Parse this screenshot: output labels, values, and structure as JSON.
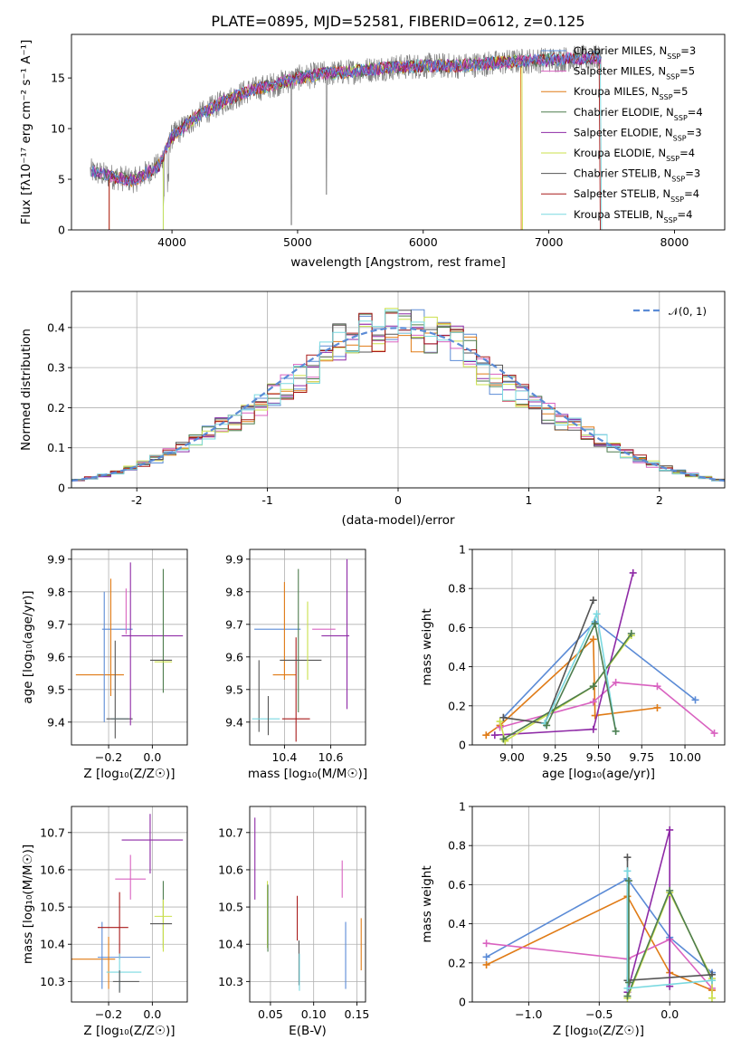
{
  "title": "PLATE=0895, MJD=52581, FIBERID=0612, z=0.125",
  "colors": [
    "#5b8bd6",
    "#d962c0",
    "#e07b16",
    "#4e7d4e",
    "#8e2aa6",
    "#cbe04b",
    "#555555",
    "#a81a1a",
    "#7ad9e0"
  ],
  "chart_data": [
    {
      "id": "spectrum",
      "type": "line",
      "xlabel": "wavelength [Angstrom, rest frame]",
      "ylabel": "Flux [fλ10⁻¹⁷ erg cm⁻² s⁻¹ A⁻¹]",
      "xlim": [
        3200,
        8400
      ],
      "ylim": [
        0,
        19.3
      ],
      "xticks": [
        4000,
        5000,
        6000,
        7000,
        8000
      ],
      "yticks": [
        0,
        5,
        10,
        15
      ],
      "continuum": {
        "x": [
          3350,
          3500,
          3700,
          3900,
          4000,
          4200,
          4400,
          4600,
          4800,
          5000,
          5200,
          5400,
          5700,
          6000,
          6300,
          6600,
          7000,
          7400
        ],
        "y": [
          5.8,
          5.3,
          4.9,
          6.4,
          9.2,
          11.2,
          12.6,
          13.7,
          14.3,
          15.0,
          15.4,
          15.6,
          16.0,
          16.2,
          16.2,
          16.5,
          16.8,
          17.0
        ]
      },
      "observed_extent": [
        3350,
        7420
      ],
      "legend": [
        {
          "name": "Chabrier MILES, N",
          "sub": "SSP",
          "tail": "=3"
        },
        {
          "name": "Salpeter MILES, N",
          "sub": "SSP",
          "tail": "=5"
        },
        {
          "name": "Kroupa MILES, N",
          "sub": "SSP",
          "tail": "=5"
        },
        {
          "name": "Chabrier ELODIE, N",
          "sub": "SSP",
          "tail": "=4"
        },
        {
          "name": "Salpeter ELODIE, N",
          "sub": "SSP",
          "tail": "=3"
        },
        {
          "name": "Kroupa ELODIE, N",
          "sub": "SSP",
          "tail": "=4"
        },
        {
          "name": "Chabrier STELIB, N",
          "sub": "SSP",
          "tail": "=3"
        },
        {
          "name": "Salpeter STELIB, N",
          "sub": "SSP",
          "tail": "=4"
        },
        {
          "name": "Kroupa STELIB, N",
          "sub": "SSP",
          "tail": "=4"
        }
      ]
    },
    {
      "id": "residuals",
      "type": "histogram",
      "xlabel": "(data-model)/error",
      "ylabel": "Normed distribution",
      "xlim": [
        -2.5,
        2.5
      ],
      "ylim": [
        0,
        0.49
      ],
      "xticks": [
        -2,
        -1,
        0,
        1,
        2
      ],
      "yticks": [
        0.0,
        0.1,
        0.2,
        0.3,
        0.4
      ],
      "bin_width": 0.1,
      "gaussian_label": "𝒩(0, 1)",
      "grid": true
    },
    {
      "id": "age_vs_Z",
      "type": "errorbar",
      "xlabel": "Z [log₁₀(Z/Z☉)]",
      "ylabel": "age  [log₁₀(age/yr)]",
      "xlim": [
        -0.37,
        0.16
      ],
      "ylim": [
        9.33,
        9.93
      ],
      "xticks": [
        -0.2,
        0.0
      ],
      "xticklabels": [
        "−0.2",
        "0.0"
      ],
      "yticks": [
        9.4,
        9.5,
        9.6,
        9.7,
        9.8,
        9.9
      ],
      "points": [
        {
          "x": -0.16,
          "xerr": 0.07,
          "y": 9.685,
          "yerr": 0.0,
          "c": 0
        },
        {
          "x": -0.24,
          "xerr": 0.11,
          "y": 9.545,
          "yerr": 0.0,
          "c": 2
        },
        {
          "x": -0.22,
          "xerr": 0.0,
          "y": 9.6,
          "yerr": 0.2,
          "c": 0
        },
        {
          "x": -0.19,
          "xerr": 0.0,
          "y": 9.66,
          "yerr": 0.18,
          "c": 2
        },
        {
          "x": -0.17,
          "xerr": 0.0,
          "y": 9.5,
          "yerr": 0.15,
          "c": 6
        },
        {
          "x": -0.15,
          "xerr": 0.04,
          "y": 9.41,
          "yerr": 0.0,
          "c": 8
        },
        {
          "x": -0.15,
          "xerr": 0.06,
          "y": 9.41,
          "yerr": 0.0,
          "c": 6
        },
        {
          "x": -0.12,
          "xerr": 0.0,
          "y": 9.74,
          "yerr": 0.07,
          "c": 1
        },
        {
          "x": -0.1,
          "xerr": 0.0,
          "y": 9.64,
          "yerr": 0.25,
          "c": 4
        },
        {
          "x": 0.0,
          "xerr": 0.14,
          "y": 9.665,
          "yerr": 0.0,
          "c": 4
        },
        {
          "x": 0.05,
          "xerr": 0.0,
          "y": 9.68,
          "yerr": 0.19,
          "c": 3
        },
        {
          "x": 0.04,
          "xerr": 0.05,
          "y": 9.59,
          "yerr": 0.0,
          "c": 6
        },
        {
          "x": 0.05,
          "xerr": 0.04,
          "y": 9.585,
          "yerr": 0.0,
          "c": 5
        }
      ]
    },
    {
      "id": "age_vs_mass",
      "type": "errorbar",
      "xlabel": "mass [log₁₀(M/M☉)]",
      "ylabel": "",
      "xlim": [
        10.25,
        10.75
      ],
      "ylim": [
        9.33,
        9.93
      ],
      "xticks": [
        10.4,
        10.6
      ],
      "yticks": [
        9.4,
        9.5,
        9.6,
        9.7,
        9.8,
        9.9
      ],
      "points": [
        {
          "x": 10.37,
          "xerr": 0.1,
          "y": 9.685,
          "yerr": 0.0,
          "c": 0
        },
        {
          "x": 10.4,
          "xerr": 0.0,
          "y": 9.68,
          "yerr": 0.15,
          "c": 2
        },
        {
          "x": 10.4,
          "xerr": 0.05,
          "y": 9.545,
          "yerr": 0.0,
          "c": 2
        },
        {
          "x": 10.29,
          "xerr": 0.0,
          "y": 9.48,
          "yerr": 0.11,
          "c": 6
        },
        {
          "x": 10.32,
          "xerr": 0.06,
          "y": 9.41,
          "yerr": 0.0,
          "c": 8
        },
        {
          "x": 10.33,
          "xerr": 0.0,
          "y": 9.42,
          "yerr": 0.06,
          "c": 6
        },
        {
          "x": 10.45,
          "xerr": 0.0,
          "y": 9.5,
          "yerr": 0.16,
          "c": 7
        },
        {
          "x": 10.45,
          "xerr": 0.06,
          "y": 9.41,
          "yerr": 0.0,
          "c": 7
        },
        {
          "x": 10.46,
          "xerr": 0.0,
          "y": 9.65,
          "yerr": 0.22,
          "c": 3
        },
        {
          "x": 10.47,
          "xerr": 0.09,
          "y": 9.59,
          "yerr": 0.0,
          "c": 6
        },
        {
          "x": 10.5,
          "xerr": 0.0,
          "y": 9.65,
          "yerr": 0.12,
          "c": 5
        },
        {
          "x": 10.57,
          "xerr": 0.05,
          "y": 9.685,
          "yerr": 0.0,
          "c": 1
        },
        {
          "x": 10.62,
          "xerr": 0.06,
          "y": 9.665,
          "yerr": 0.0,
          "c": 4
        },
        {
          "x": 10.67,
          "xerr": 0.0,
          "y": 9.67,
          "yerr": 0.23,
          "c": 4
        }
      ]
    },
    {
      "id": "weight_vs_age",
      "type": "line",
      "xlabel": "age  [log₁₀(age/yr)]",
      "ylabel": "mass weight",
      "xlim": [
        8.77,
        10.23
      ],
      "ylim": [
        0,
        1.0
      ],
      "xticks": [
        9.0,
        9.25,
        9.5,
        9.75,
        10.0
      ],
      "xticklabels": [
        "9.00",
        "9.25",
        "9.50",
        "9.75",
        "10.00"
      ],
      "yticks": [
        0.0,
        0.2,
        0.4,
        0.6,
        0.8,
        1.0
      ],
      "series": [
        {
          "c": 0,
          "x": [
            8.95,
            9.48,
            10.06
          ],
          "y": [
            0.14,
            0.63,
            0.23
          ]
        },
        {
          "c": 2,
          "x": [
            8.85,
            8.93,
            9.47,
            9.48,
            9.84
          ],
          "y": [
            0.05,
            0.1,
            0.54,
            0.15,
            0.19
          ]
        },
        {
          "c": 1,
          "x": [
            8.93,
            9.47,
            9.6,
            9.84,
            10.17
          ],
          "y": [
            0.09,
            0.22,
            0.32,
            0.3,
            0.06
          ]
        },
        {
          "c": 4,
          "x": [
            8.9,
            9.47,
            9.7
          ],
          "y": [
            0.05,
            0.08,
            0.88
          ]
        },
        {
          "c": 5,
          "x": [
            8.93,
            8.96,
            9.47,
            9.69
          ],
          "y": [
            0.12,
            0.02,
            0.3,
            0.56
          ]
        },
        {
          "c": 3,
          "x": [
            8.95,
            9.47,
            9.69
          ],
          "y": [
            0.03,
            0.3,
            0.57
          ]
        },
        {
          "c": 6,
          "x": [
            8.95,
            9.19,
            9.47
          ],
          "y": [
            0.14,
            0.11,
            0.74
          ]
        },
        {
          "c": 8,
          "x": [
            9.19,
            9.49,
            9.6
          ],
          "y": [
            0.11,
            0.67,
            0.07
          ]
        },
        {
          "c": 3,
          "x": [
            9.2,
            9.48,
            9.6
          ],
          "y": [
            0.1,
            0.62,
            0.07
          ]
        }
      ]
    },
    {
      "id": "mass_vs_Z",
      "type": "errorbar",
      "xlabel": "Z [log₁₀(Z/Z☉)]",
      "ylabel": "mass [log₁₀(M/M☉)]",
      "xlim": [
        -0.37,
        0.16
      ],
      "ylim": [
        10.245,
        10.77
      ],
      "xticks": [
        -0.2,
        0.0
      ],
      "xticklabels": [
        "−0.2",
        "0.0"
      ],
      "yticks": [
        10.3,
        10.4,
        10.5,
        10.6,
        10.7
      ],
      "points": [
        {
          "x": -0.29,
          "xerr": 0.12,
          "y": 10.36,
          "yerr": 0.0,
          "c": 2
        },
        {
          "x": -0.23,
          "xerr": 0.0,
          "y": 10.37,
          "yerr": 0.09,
          "c": 0
        },
        {
          "x": -0.13,
          "xerr": 0.12,
          "y": 10.365,
          "yerr": 0.0,
          "c": 0
        },
        {
          "x": -0.18,
          "xerr": 0.07,
          "y": 10.445,
          "yerr": 0.0,
          "c": 7
        },
        {
          "x": -0.15,
          "xerr": 0.0,
          "y": 10.45,
          "yerr": 0.09,
          "c": 7
        },
        {
          "x": -0.2,
          "xerr": 0.0,
          "y": 10.35,
          "yerr": 0.07,
          "c": 2
        },
        {
          "x": -0.13,
          "xerr": 0.08,
          "y": 10.325,
          "yerr": 0.0,
          "c": 8
        },
        {
          "x": -0.15,
          "xerr": 0.0,
          "y": 10.325,
          "yerr": 0.05,
          "c": 8
        },
        {
          "x": -0.12,
          "xerr": 0.06,
          "y": 10.3,
          "yerr": 0.0,
          "c": 6
        },
        {
          "x": -0.15,
          "xerr": 0.0,
          "y": 10.3,
          "yerr": 0.03,
          "c": 6
        },
        {
          "x": -0.1,
          "xerr": 0.07,
          "y": 10.575,
          "yerr": 0.0,
          "c": 1
        },
        {
          "x": -0.1,
          "xerr": 0.0,
          "y": 10.58,
          "yerr": 0.06,
          "c": 1
        },
        {
          "x": 0.0,
          "xerr": 0.14,
          "y": 10.68,
          "yerr": 0.0,
          "c": 4
        },
        {
          "x": -0.01,
          "xerr": 0.0,
          "y": 10.67,
          "yerr": 0.08,
          "c": 4
        },
        {
          "x": 0.05,
          "xerr": 0.0,
          "y": 10.48,
          "yerr": 0.09,
          "c": 3
        },
        {
          "x": 0.05,
          "xerr": 0.04,
          "y": 10.475,
          "yerr": 0.0,
          "c": 5
        },
        {
          "x": 0.05,
          "xerr": 0.0,
          "y": 10.45,
          "yerr": 0.07,
          "c": 5
        },
        {
          "x": 0.04,
          "xerr": 0.05,
          "y": 10.455,
          "yerr": 0.0,
          "c": 6
        }
      ]
    },
    {
      "id": "mass_vs_EBV",
      "type": "errorbar",
      "xlabel": "E(B-V)",
      "ylabel": "",
      "xlim": [
        0.026,
        0.16
      ],
      "ylim": [
        10.245,
        10.77
      ],
      "xticks": [
        0.05,
        0.1,
        0.15
      ],
      "xticklabels": [
        "0.05",
        "0.10",
        "0.15"
      ],
      "yticks": [
        10.3,
        10.4,
        10.5,
        10.6,
        10.7
      ],
      "points": [
        {
          "x": 0.032,
          "xerr": 0.0,
          "y": 10.63,
          "yerr": 0.11,
          "c": 4
        },
        {
          "x": 0.0465,
          "xerr": 0.0,
          "y": 10.48,
          "yerr": 0.09,
          "c": 5
        },
        {
          "x": 0.047,
          "xerr": 0.0,
          "y": 10.47,
          "yerr": 0.09,
          "c": 3
        },
        {
          "x": 0.081,
          "xerr": 0.0,
          "y": 10.47,
          "yerr": 0.06,
          "c": 7
        },
        {
          "x": 0.083,
          "xerr": 0.0,
          "y": 10.35,
          "yerr": 0.06,
          "c": 6
        },
        {
          "x": 0.0835,
          "xerr": 0.0,
          "y": 10.325,
          "yerr": 0.05,
          "c": 8
        },
        {
          "x": 0.133,
          "xerr": 0.0,
          "y": 10.575,
          "yerr": 0.05,
          "c": 1
        },
        {
          "x": 0.137,
          "xerr": 0.0,
          "y": 10.37,
          "yerr": 0.09,
          "c": 0
        },
        {
          "x": 0.155,
          "xerr": 0.0,
          "y": 10.4,
          "yerr": 0.07,
          "c": 2
        }
      ]
    },
    {
      "id": "weight_vs_Z",
      "type": "line",
      "xlabel": "Z [log₁₀(Z/Z☉)]",
      "ylabel": "mass weight",
      "xlim": [
        -1.4,
        0.39
      ],
      "ylim": [
        0,
        1.0
      ],
      "xticks": [
        -1.0,
        -0.5,
        0.0
      ],
      "xticklabels": [
        "−1.0",
        "−0.5",
        "0.0"
      ],
      "yticks": [
        0.0,
        0.2,
        0.4,
        0.6,
        0.8,
        1.0
      ],
      "series": [
        {
          "c": 0,
          "x": [
            -1.3,
            -0.3,
            0.0,
            0.3,
            0.3
          ],
          "y": [
            0.23,
            0.63,
            0.33,
            0.15,
            0.14
          ]
        },
        {
          "c": 2,
          "x": [
            -1.3,
            -0.3,
            0.0,
            0.3
          ],
          "y": [
            0.19,
            0.54,
            0.15,
            0.06
          ]
        },
        {
          "c": 1,
          "x": [
            -1.3,
            -0.3,
            0.0,
            0.3
          ],
          "y": [
            0.3,
            0.22,
            0.32,
            0.07
          ]
        },
        {
          "c": 4,
          "x": [
            -0.3,
            0.0,
            0.0
          ],
          "y": [
            0.05,
            0.88,
            0.08
          ]
        },
        {
          "c": 5,
          "x": [
            -0.3,
            0.0,
            0.3,
            0.3
          ],
          "y": [
            0.02,
            0.56,
            0.12,
            0.02
          ]
        },
        {
          "c": 3,
          "x": [
            -0.3,
            0.0,
            0.3
          ],
          "y": [
            0.03,
            0.57,
            0.11
          ]
        },
        {
          "c": 6,
          "x": [
            -0.3,
            -0.3,
            0.3
          ],
          "y": [
            0.74,
            0.11,
            0.14
          ]
        },
        {
          "c": 8,
          "x": [
            -0.3,
            -0.3,
            0.3
          ],
          "y": [
            0.67,
            0.07,
            0.11
          ]
        },
        {
          "c": 3,
          "x": [
            -0.29,
            -0.29
          ],
          "y": [
            0.62,
            0.1
          ]
        }
      ]
    }
  ]
}
